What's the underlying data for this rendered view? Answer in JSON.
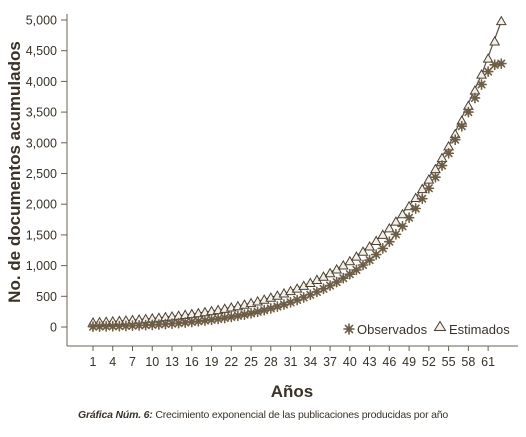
{
  "chart_data": {
    "type": "scatter",
    "xlabel": "Años",
    "ylabel": "No. de documentos acumulados",
    "xticks": [
      "1",
      "4",
      "7",
      "10",
      "13",
      "16",
      "19",
      "22",
      "25",
      "28",
      "31",
      "34",
      "37",
      "40",
      "43",
      "46",
      "49",
      "52",
      "55",
      "58",
      "61"
    ],
    "yticks": [
      "0",
      "500",
      "1,000",
      "1,500",
      "2,000",
      "2,500",
      "3,000",
      "3,500",
      "4,000",
      "4,500",
      "5,000"
    ],
    "ylim": [
      0,
      5000
    ],
    "xlim": [
      1,
      63
    ],
    "grid": false,
    "legend_position": "bottom-right",
    "series": [
      {
        "name": "Observados",
        "marker": "asterisk",
        "color": "#7a6a52",
        "x": [
          1,
          2,
          3,
          4,
          5,
          6,
          7,
          8,
          9,
          10,
          11,
          12,
          13,
          14,
          15,
          16,
          17,
          18,
          19,
          20,
          21,
          22,
          23,
          24,
          25,
          26,
          27,
          28,
          29,
          30,
          31,
          32,
          33,
          34,
          35,
          36,
          37,
          38,
          39,
          40,
          41,
          42,
          43,
          44,
          45,
          46,
          47,
          48,
          49,
          50,
          51,
          52,
          53,
          54,
          55,
          56,
          57,
          58,
          59,
          60,
          61,
          62,
          63
        ],
        "y": [
          5,
          7,
          9,
          11,
          14,
          17,
          21,
          25,
          30,
          35,
          41,
          48,
          55,
          63,
          72,
          82,
          93,
          105,
          118,
          132,
          147,
          164,
          182,
          202,
          224,
          248,
          274,
          302,
          333,
          366,
          402,
          440,
          481,
          525,
          572,
          622,
          675,
          732,
          795,
          860,
          930,
          1010,
          1090,
          1180,
          1280,
          1390,
          1510,
          1640,
          1780,
          1930,
          2090,
          2260,
          2440,
          2630,
          2830,
          3050,
          3270,
          3500,
          3730,
          3950,
          4160,
          4270,
          4290
        ]
      },
      {
        "name": "Estimados",
        "marker": "triangle",
        "color": "#5a5040",
        "x": [
          1,
          2,
          3,
          4,
          5,
          6,
          7,
          8,
          9,
          10,
          11,
          12,
          13,
          14,
          15,
          16,
          17,
          18,
          19,
          20,
          21,
          22,
          23,
          24,
          25,
          26,
          27,
          28,
          29,
          30,
          31,
          32,
          33,
          34,
          35,
          36,
          37,
          38,
          39,
          40,
          41,
          42,
          43,
          44,
          45,
          46,
          47,
          48,
          49,
          50,
          51,
          52,
          53,
          54,
          55,
          56,
          57,
          58,
          59,
          60,
          61,
          62,
          63
        ],
        "y": [
          72,
          78,
          84,
          90,
          97,
          104,
          112,
          120,
          129,
          138,
          148,
          159,
          170,
          182,
          195,
          209,
          224,
          240,
          257,
          275,
          295,
          316,
          338,
          362,
          388,
          415,
          444,
          476,
          509,
          545,
          583,
          624,
          668,
          715,
          765,
          818,
          875,
          936,
          1001,
          1070,
          1145,
          1225,
          1310,
          1400,
          1500,
          1605,
          1715,
          1835,
          1965,
          2100,
          2245,
          2400,
          2570,
          2750,
          2940,
          3140,
          3360,
          3600,
          3850,
          4110,
          4370,
          4650,
          4980
        ]
      }
    ],
    "fit_line": {
      "name": "Estimados",
      "x": [
        1,
        5,
        10,
        15,
        20,
        25,
        30,
        35,
        40,
        45,
        50,
        55,
        60,
        63
      ],
      "y": [
        72,
        97,
        138,
        195,
        275,
        388,
        545,
        765,
        1070,
        1500,
        2100,
        2940,
        4110,
        4980
      ]
    }
  },
  "caption": {
    "label": "Gráfica Núm. 6:",
    "text": " Crecimiento exponencial de las publicaciones producidas por año"
  }
}
